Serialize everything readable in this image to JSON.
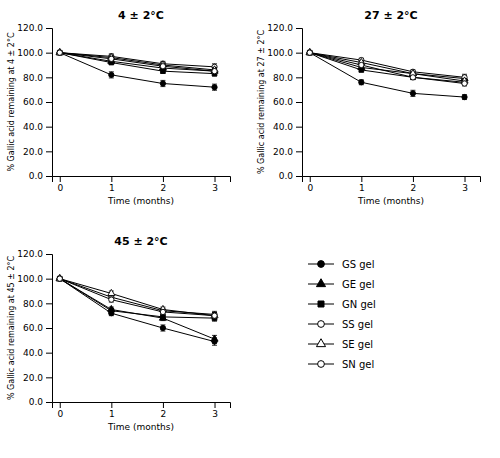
{
  "chart_data": [
    {
      "type": "line",
      "title": "4 ± 2°C",
      "xlabel": "Time (months)",
      "ylabel": "% Gallic acid remaining at 4 ± 2°C",
      "x": [
        0,
        1,
        2,
        3
      ],
      "xlim": [
        -0.15,
        3.3
      ],
      "xticks": [
        0,
        1,
        2,
        3
      ],
      "ylim": [
        0.0,
        120.0
      ],
      "yticks": [
        {
          "value": 0.0,
          "label": "0.0"
        },
        {
          "value": 20.0,
          "label": "20.0"
        },
        {
          "value": 40.0,
          "label": "40.0"
        },
        {
          "value": 60.0,
          "label": "60.0"
        },
        {
          "value": 80.0,
          "label": "80.0"
        },
        {
          "value": 100.0,
          "label": "100.0"
        },
        {
          "value": 120.0,
          "label": "120.0"
        }
      ],
      "grid": false,
      "series": [
        {
          "name": "GS gel",
          "color": "#000000",
          "marker": "circle",
          "values": [
            100.0,
            82.0,
            75.0,
            72.0
          ],
          "errors": [
            0.3,
            2.5,
            2.5,
            2.5
          ]
        },
        {
          "name": "GE gel",
          "color": "#000000",
          "marker": "triangle-up",
          "values": [
            100.0,
            93.0,
            87.5,
            85.0
          ],
          "errors": [
            0.3,
            1.5,
            2.0,
            2.5
          ]
        },
        {
          "name": "GN gel",
          "color": "#000000",
          "marker": "square",
          "values": [
            100.0,
            92.0,
            85.0,
            83.0
          ],
          "errors": [
            0.3,
            1.5,
            1.5,
            2.0
          ]
        },
        {
          "name": "SS gel",
          "color": "#000000",
          "marker": "circle-open",
          "values": [
            100.0,
            97.0,
            91.0,
            88.5
          ],
          "errors": [
            0.3,
            2.0,
            2.0,
            2.5
          ]
        },
        {
          "name": "SE gel",
          "color": "#000000",
          "marker": "triangle-up-open",
          "values": [
            100.0,
            96.0,
            90.0,
            86.0
          ],
          "errors": [
            0.3,
            1.5,
            1.5,
            2.0
          ]
        },
        {
          "name": "SN gel",
          "color": "#000000",
          "marker": "circle-open",
          "values": [
            100.0,
            95.0,
            89.0,
            85.0
          ],
          "errors": [
            0.3,
            1.5,
            1.5,
            2.0
          ]
        }
      ]
    },
    {
      "type": "line",
      "title": "27 ± 2°C",
      "xlabel": "Time (months)",
      "ylabel": "% Gallic acid remaining at 27 ± 2°C",
      "x": [
        0,
        1,
        2,
        3
      ],
      "xlim": [
        -0.15,
        3.3
      ],
      "xticks": [
        0,
        1,
        2,
        3
      ],
      "ylim": [
        0.0,
        120.0
      ],
      "yticks": [
        {
          "value": 0.0,
          "label": "0.0"
        },
        {
          "value": 20.0,
          "label": "20.0"
        },
        {
          "value": 40.0,
          "label": "40.0"
        },
        {
          "value": 60.0,
          "label": "60.0"
        },
        {
          "value": 80.0,
          "label": "80.0"
        },
        {
          "value": 100.0,
          "label": "100.0"
        },
        {
          "value": 120.0,
          "label": "120.0"
        }
      ],
      "grid": false,
      "series": [
        {
          "name": "GS gel",
          "color": "#000000",
          "marker": "circle",
          "values": [
            100.0,
            76.0,
            67.0,
            64.0
          ],
          "errors": [
            0.3,
            2.0,
            2.5,
            2.0
          ]
        },
        {
          "name": "GE gel",
          "color": "#000000",
          "marker": "triangle-up",
          "values": [
            100.0,
            88.0,
            83.0,
            79.0
          ],
          "errors": [
            0.3,
            1.5,
            1.5,
            2.5
          ]
        },
        {
          "name": "GN gel",
          "color": "#000000",
          "marker": "square",
          "values": [
            100.0,
            86.0,
            80.0,
            76.0
          ],
          "errors": [
            0.3,
            1.5,
            1.5,
            2.0
          ]
        },
        {
          "name": "SS gel",
          "color": "#000000",
          "marker": "circle-open",
          "values": [
            100.0,
            94.0,
            84.5,
            80.0
          ],
          "errors": [
            0.3,
            1.5,
            1.5,
            2.5
          ]
        },
        {
          "name": "SE gel",
          "color": "#000000",
          "marker": "triangle-up-open",
          "values": [
            100.0,
            92.0,
            83.0,
            77.0
          ],
          "errors": [
            0.3,
            1.5,
            1.5,
            2.0
          ]
        },
        {
          "name": "SN gel",
          "color": "#000000",
          "marker": "circle-open",
          "values": [
            100.0,
            90.0,
            80.0,
            75.0
          ],
          "errors": [
            0.3,
            1.5,
            1.5,
            2.0
          ]
        }
      ]
    },
    {
      "type": "line",
      "title": "45 ± 2°C",
      "xlabel": "Time (months)",
      "ylabel": "% Gallic acid remaining at 45 ± 2°C",
      "x": [
        0,
        1,
        2,
        3
      ],
      "xlim": [
        -0.15,
        3.3
      ],
      "xticks": [
        0,
        1,
        2,
        3
      ],
      "ylim": [
        0.0,
        120.0
      ],
      "yticks": [
        {
          "value": 0.0,
          "label": "0.0"
        },
        {
          "value": 20.0,
          "label": "20.0"
        },
        {
          "value": 40.0,
          "label": "40.0"
        },
        {
          "value": 60.0,
          "label": "60.0"
        },
        {
          "value": 80.0,
          "label": "80.0"
        },
        {
          "value": 100.0,
          "label": "100.0"
        },
        {
          "value": 120.0,
          "label": "120.0"
        }
      ],
      "grid": false,
      "legend": "right",
      "series": [
        {
          "name": "GS gel",
          "color": "#000000",
          "marker": "circle",
          "values": [
            100.0,
            72.0,
            60.0,
            49.0
          ],
          "errors": [
            0.3,
            2.0,
            2.5,
            3.0
          ]
        },
        {
          "name": "GE gel",
          "color": "#000000",
          "marker": "triangle-up",
          "values": [
            100.0,
            75.0,
            68.0,
            51.0
          ],
          "errors": [
            0.3,
            2.0,
            2.0,
            3.0
          ]
        },
        {
          "name": "GN gel",
          "color": "#000000",
          "marker": "square",
          "values": [
            100.0,
            74.0,
            69.0,
            68.0
          ],
          "errors": [
            0.3,
            2.0,
            2.0,
            2.5
          ]
        },
        {
          "name": "SS gel",
          "color": "#000000",
          "marker": "circle-open",
          "values": [
            100.0,
            85.0,
            74.0,
            71.0
          ],
          "errors": [
            0.3,
            2.0,
            2.0,
            2.5
          ]
        },
        {
          "name": "SE gel",
          "color": "#000000",
          "marker": "triangle-up-open",
          "values": [
            100.0,
            88.0,
            75.0,
            70.0
          ],
          "errors": [
            0.3,
            2.0,
            2.0,
            2.5
          ]
        },
        {
          "name": "SN gel",
          "color": "#000000",
          "marker": "circle-open",
          "values": [
            100.0,
            83.0,
            73.0,
            70.0
          ],
          "errors": [
            0.3,
            2.0,
            2.0,
            2.5
          ]
        }
      ]
    }
  ]
}
